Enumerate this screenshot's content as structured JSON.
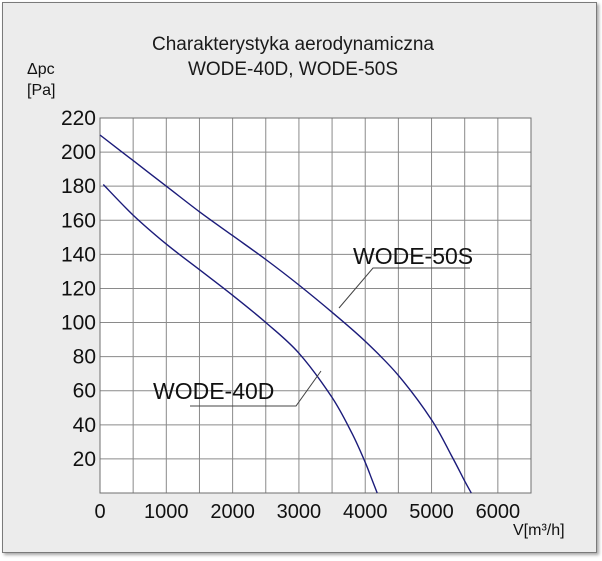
{
  "chart_data": {
    "type": "line",
    "title": "Charakterystyka aerodynamiczna",
    "subtitle": "WODE-40D, WODE-50S",
    "ylabel_top": "Δpc",
    "ylabel_unit": "[Pa]",
    "xlabel": "V[m³/h]",
    "xlim": [
      0,
      6500
    ],
    "ylim": [
      0,
      220
    ],
    "xticks": [
      0,
      1000,
      2000,
      3000,
      4000,
      5000,
      6000
    ],
    "yticks": [
      20,
      40,
      60,
      80,
      100,
      120,
      140,
      160,
      180,
      200,
      220
    ],
    "grid": true,
    "series": [
      {
        "name": "WODE-50S",
        "color": "#1b1b7a",
        "x": [
          0,
          500,
          1000,
          1500,
          2000,
          2500,
          3000,
          3500,
          4000,
          4500,
          5000,
          5300,
          5500,
          5600
        ],
        "y": [
          210,
          195,
          180,
          165,
          151,
          137,
          122,
          106,
          89,
          69,
          43,
          22,
          7,
          0
        ]
      },
      {
        "name": "WODE-40D",
        "color": "#1b1b7a",
        "x": [
          50,
          500,
          1000,
          1500,
          2000,
          2500,
          3000,
          3500,
          3800,
          4000,
          4100,
          4180
        ],
        "y": [
          181,
          163,
          146,
          131,
          116,
          100,
          82,
          56,
          35,
          18,
          8,
          0
        ]
      }
    ],
    "annotations": [
      {
        "text": "WODE-50S",
        "points_to_series": "WODE-50S"
      },
      {
        "text": "WODE-40D",
        "points_to_series": "WODE-40D"
      }
    ]
  }
}
